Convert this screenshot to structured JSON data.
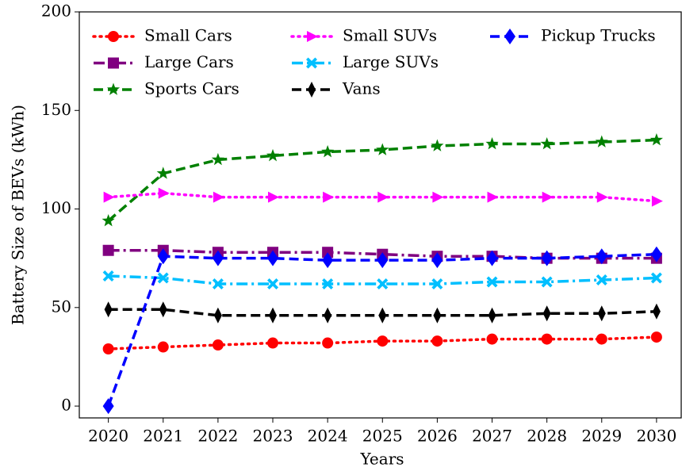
{
  "chart_data": {
    "type": "line",
    "xlabel": "Years",
    "ylabel": "Battery Size of BEVs (kWh)",
    "x": [
      2020,
      2021,
      2022,
      2023,
      2024,
      2025,
      2026,
      2027,
      2028,
      2029,
      2030
    ],
    "xlim": [
      2019.47,
      2030.45
    ],
    "xticks": [
      2020,
      2021,
      2022,
      2023,
      2024,
      2025,
      2026,
      2027,
      2028,
      2029,
      2030
    ],
    "ylim": [
      -6,
      200
    ],
    "yticks": [
      0,
      50,
      100,
      150,
      200
    ],
    "legend": "upper left",
    "grid": false,
    "series": [
      {
        "name": "Small Cars",
        "color": "#ff0000",
        "dash": "dotted",
        "marker": "circle",
        "values": [
          29,
          30,
          31,
          32,
          32,
          33,
          33,
          34,
          34,
          34,
          35
        ]
      },
      {
        "name": "Large Cars",
        "color": "#800080",
        "dash": "dashdot",
        "marker": "square",
        "values": [
          79,
          79,
          78,
          78,
          78,
          77,
          76,
          76,
          75,
          75,
          75
        ]
      },
      {
        "name": "Sports Cars",
        "color": "#008000",
        "dash": "dashed",
        "marker": "star",
        "values": [
          94,
          118,
          125,
          127,
          129,
          130,
          132,
          133,
          133,
          134,
          135
        ]
      },
      {
        "name": "Small SUVs",
        "color": "#ff00ff",
        "dash": "dotted",
        "marker": "triangle-right",
        "values": [
          106,
          108,
          106,
          106,
          106,
          106,
          106,
          106,
          106,
          106,
          104
        ]
      },
      {
        "name": "Large SUVs",
        "color": "#00bfff",
        "dash": "dashdot",
        "marker": "x",
        "values": [
          66,
          65,
          62,
          62,
          62,
          62,
          62,
          63,
          63,
          64,
          65
        ]
      },
      {
        "name": "Vans",
        "color": "#000000",
        "dash": "dashed",
        "marker": "thin-diamond",
        "values": [
          49,
          49,
          46,
          46,
          46,
          46,
          46,
          46,
          47,
          47,
          48
        ]
      },
      {
        "name": "Pickup Trucks",
        "color": "#0000ff",
        "dash": "dashed",
        "marker": "diamond",
        "values": [
          0,
          76,
          75,
          75,
          74,
          74,
          74,
          75,
          75,
          76,
          77
        ]
      }
    ]
  }
}
